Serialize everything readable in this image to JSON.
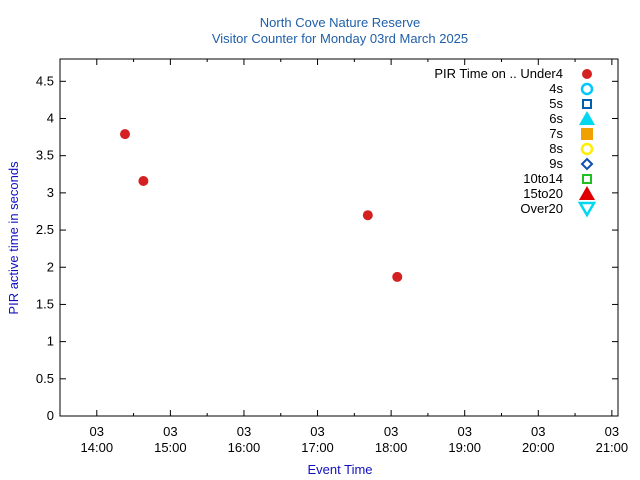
{
  "chart_data": {
    "type": "scatter",
    "title": "North Cove Nature Reserve",
    "subtitle": "Visitor Counter for Monday 03rd March 2025",
    "xlabel": "Event Time",
    "ylabel": "PIR active time in seconds",
    "x_ticks": [
      {
        "day": "03",
        "time": "14:00"
      },
      {
        "day": "03",
        "time": "15:00"
      },
      {
        "day": "03",
        "time": "16:00"
      },
      {
        "day": "03",
        "time": "17:00"
      },
      {
        "day": "03",
        "time": "18:00"
      },
      {
        "day": "03",
        "time": "19:00"
      },
      {
        "day": "03",
        "time": "20:00"
      },
      {
        "day": "03",
        "time": "21:00"
      }
    ],
    "xlim": [
      "13:30",
      "21:05"
    ],
    "ylim": [
      0,
      4.8
    ],
    "y_ticks": [
      "0",
      "0.5",
      "1",
      "1.5",
      "2",
      "2.5",
      "3",
      "3.5",
      "4",
      "4.5"
    ],
    "legend_position": "top-right",
    "series": [
      {
        "name": "PIR Time on .. Under4",
        "marker": "circle-filled",
        "color": "#d42020",
        "points": [
          {
            "x": "14:23",
            "y": 3.79
          },
          {
            "x": "14:38",
            "y": 3.16
          },
          {
            "x": "17:41",
            "y": 2.7
          },
          {
            "x": "18:05",
            "y": 1.87
          }
        ]
      },
      {
        "name": "4s",
        "marker": "circle-open",
        "color": "#00c8ff",
        "points": []
      },
      {
        "name": "5s",
        "marker": "square-open",
        "color": "#0060b0",
        "points": []
      },
      {
        "name": "6s",
        "marker": "triangle-up-filled",
        "color": "#00d8f0",
        "points": []
      },
      {
        "name": "7s",
        "marker": "square-filled",
        "color": "#f0a000",
        "points": []
      },
      {
        "name": "8s",
        "marker": "circle-open",
        "color": "#ffee00",
        "points": []
      },
      {
        "name": "9s",
        "marker": "diamond-open",
        "color": "#1050b0",
        "points": []
      },
      {
        "name": "10to14",
        "marker": "square-open",
        "color": "#20c020",
        "points": []
      },
      {
        "name": "15to20",
        "marker": "triangle-up-filled",
        "color": "#e00000",
        "points": []
      },
      {
        "name": "Over20",
        "marker": "triangle-down-open",
        "color": "#00d8f0",
        "points": []
      }
    ]
  }
}
